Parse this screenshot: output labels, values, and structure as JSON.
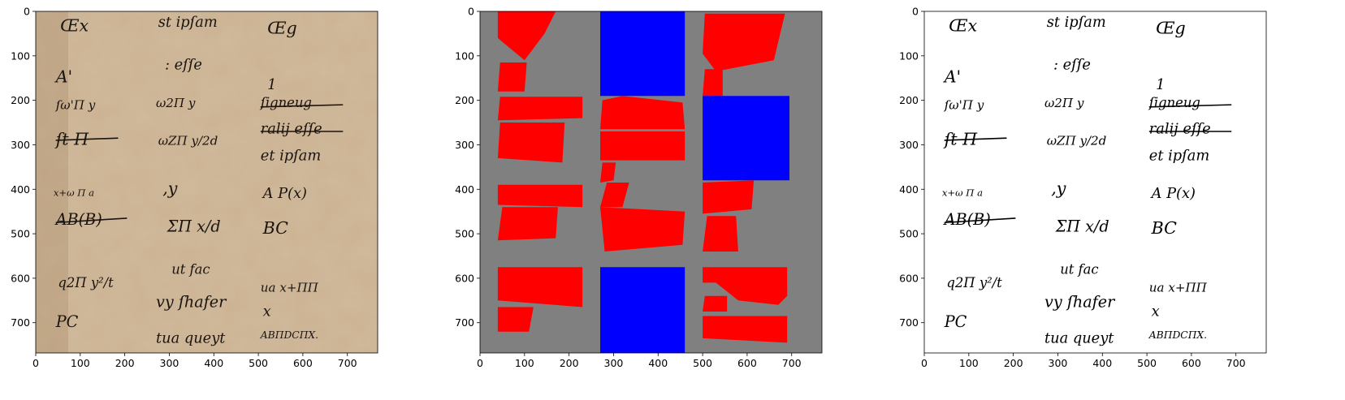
{
  "figure": {
    "panel_count": 3,
    "x_ticks": [
      "0",
      "100",
      "200",
      "300",
      "400",
      "500",
      "600",
      "700"
    ],
    "y_ticks": [
      "0",
      "100",
      "200",
      "300",
      "400",
      "500",
      "600",
      "700"
    ],
    "x_range": [
      0,
      768
    ],
    "y_range": [
      768,
      0
    ],
    "colors": {
      "parchment": "#c9b08f",
      "ink": "#1a1410",
      "background_gray": "#808080",
      "region_red": "#ff0000",
      "region_blue": "#0000ff",
      "binary_bg": "#ffffff",
      "binary_ink": "#000000"
    }
  },
  "panels": [
    {
      "name": "original-manuscript",
      "kind": "image"
    },
    {
      "name": "region-segmentation-mask",
      "kind": "mask"
    },
    {
      "name": "binarized-manuscript",
      "kind": "binary-image"
    }
  ],
  "handwriting": {
    "col1": [
      "Œx",
      "A'",
      "ſω'Π  y",
      "ſt  Π",
      "x+ω  Π  a",
      "AB(B)",
      "q2Π  y²/t",
      "PC"
    ],
    "col2": [
      "st  ipſam",
      ":  eſſe",
      "ω2Π  y",
      "ωZΠ  y/2d",
      ",y",
      "ΣΠ  x/d",
      "ut  fac",
      "vy  ſhafer",
      "tua  queyt"
    ],
    "col3": [
      "Œg",
      "1",
      "ſigneug",
      "ralij  eſſe",
      "et  ipſam",
      "A  P(x)",
      "BC",
      "ua  x+ΠΠ",
      "x",
      "ABΠDCΠX."
    ]
  },
  "mask_regions": {
    "red": [
      [
        [
          40,
          0
        ],
        [
          170,
          0
        ],
        [
          145,
          50
        ],
        [
          100,
          110
        ],
        [
          40,
          60
        ]
      ],
      [
        [
          45,
          115
        ],
        [
          105,
          115
        ],
        [
          100,
          180
        ],
        [
          40,
          180
        ]
      ],
      [
        [
          45,
          192
        ],
        [
          230,
          192
        ],
        [
          230,
          240
        ],
        [
          40,
          245
        ]
      ],
      [
        [
          45,
          250
        ],
        [
          190,
          250
        ],
        [
          185,
          340
        ],
        [
          40,
          330
        ]
      ],
      [
        [
          40,
          390
        ],
        [
          230,
          390
        ],
        [
          230,
          440
        ],
        [
          40,
          435
        ]
      ],
      [
        [
          50,
          440
        ],
        [
          175,
          440
        ],
        [
          170,
          510
        ],
        [
          40,
          515
        ]
      ],
      [
        [
          40,
          575
        ],
        [
          230,
          575
        ],
        [
          230,
          665
        ],
        [
          40,
          650
        ]
      ],
      [
        [
          40,
          665
        ],
        [
          120,
          665
        ],
        [
          110,
          720
        ],
        [
          40,
          720
        ]
      ],
      [
        [
          275,
          200
        ],
        [
          320,
          190
        ],
        [
          455,
          205
        ],
        [
          460,
          265
        ],
        [
          270,
          265
        ]
      ],
      [
        [
          270,
          270
        ],
        [
          460,
          270
        ],
        [
          460,
          335
        ],
        [
          270,
          335
        ]
      ],
      [
        [
          275,
          340
        ],
        [
          305,
          340
        ],
        [
          300,
          380
        ],
        [
          270,
          385
        ]
      ],
      [
        [
          285,
          385
        ],
        [
          335,
          385
        ],
        [
          320,
          440
        ],
        [
          270,
          440
        ]
      ],
      [
        [
          270,
          440
        ],
        [
          460,
          450
        ],
        [
          455,
          525
        ],
        [
          280,
          540
        ]
      ],
      [
        [
          505,
          5
        ],
        [
          685,
          5
        ],
        [
          660,
          110
        ],
        [
          530,
          135
        ],
        [
          500,
          95
        ]
      ],
      [
        [
          505,
          130
        ],
        [
          545,
          130
        ],
        [
          545,
          190
        ],
        [
          500,
          190
        ]
      ],
      [
        [
          500,
          385
        ],
        [
          615,
          380
        ],
        [
          610,
          445
        ],
        [
          500,
          455
        ]
      ],
      [
        [
          510,
          460
        ],
        [
          575,
          460
        ],
        [
          580,
          540
        ],
        [
          500,
          540
        ]
      ],
      [
        [
          500,
          575
        ],
        [
          690,
          575
        ],
        [
          690,
          640
        ],
        [
          670,
          660
        ],
        [
          580,
          650
        ],
        [
          530,
          610
        ],
        [
          500,
          610
        ]
      ],
      [
        [
          505,
          640
        ],
        [
          555,
          640
        ],
        [
          555,
          675
        ],
        [
          500,
          675
        ]
      ],
      [
        [
          500,
          685
        ],
        [
          690,
          685
        ],
        [
          690,
          745
        ],
        [
          500,
          735
        ]
      ]
    ],
    "blue": [
      [
        [
          270,
          0
        ],
        [
          460,
          0
        ],
        [
          460,
          190
        ],
        [
          270,
          190
        ]
      ],
      [
        [
          500,
          190
        ],
        [
          695,
          190
        ],
        [
          695,
          380
        ],
        [
          500,
          380
        ]
      ],
      [
        [
          270,
          575
        ],
        [
          460,
          575
        ],
        [
          460,
          768
        ],
        [
          270,
          768
        ]
      ]
    ]
  }
}
